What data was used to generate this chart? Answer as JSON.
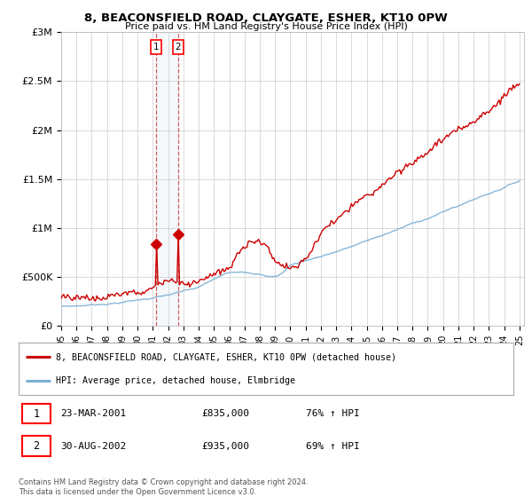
{
  "title": "8, BEACONSFIELD ROAD, CLAYGATE, ESHER, KT10 0PW",
  "subtitle": "Price paid vs. HM Land Registry's House Price Index (HPI)",
  "ylabel_ticks": [
    "£0",
    "£500K",
    "£1M",
    "£1.5M",
    "£2M",
    "£2.5M",
    "£3M"
  ],
  "ylabel_values": [
    0,
    500000,
    1000000,
    1500000,
    2000000,
    2500000,
    3000000
  ],
  "ylim": [
    0,
    3000000
  ],
  "hpi_color": "#7bafd4",
  "price_color": "#cc0000",
  "transaction_color": "#cc0000",
  "shade_color": "#dde8f5",
  "legend_house": "8, BEACONSFIELD ROAD, CLAYGATE, ESHER, KT10 0PW (detached house)",
  "legend_hpi": "HPI: Average price, detached house, Elmbridge",
  "transaction1_label": "1",
  "transaction1_date": "23-MAR-2001",
  "transaction1_price": "£835,000",
  "transaction1_hpi": "76% ↑ HPI",
  "transaction1_x": 2001.22,
  "transaction1_y": 835000,
  "transaction2_label": "2",
  "transaction2_date": "30-AUG-2002",
  "transaction2_price": "£935,000",
  "transaction2_hpi": "69% ↑ HPI",
  "transaction2_x": 2002.66,
  "transaction2_y": 935000,
  "footnote": "Contains HM Land Registry data © Crown copyright and database right 2024.\nThis data is licensed under the Open Government Licence v3.0.",
  "background_color": "#ffffff",
  "grid_color": "#cccccc",
  "xlim_left": 1995.0,
  "xlim_right": 2025.3
}
